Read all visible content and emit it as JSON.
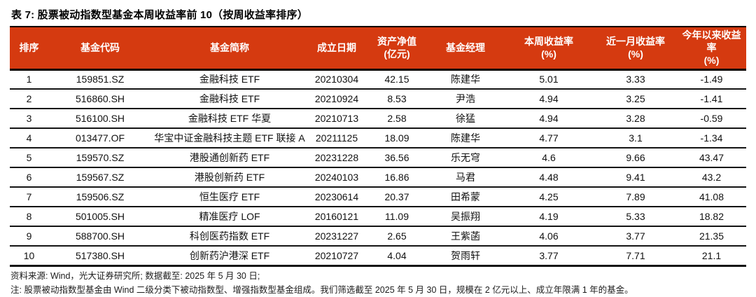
{
  "title": "表 7: 股票被动指数型基金本周收益率前 10（按周收益率排序）",
  "colors": {
    "header_bg": "#d53a10",
    "header_text": "#ffffff",
    "rule": "#141414"
  },
  "table": {
    "columns": [
      {
        "line1": "排序",
        "line2": ""
      },
      {
        "line1": "基金代码",
        "line2": ""
      },
      {
        "line1": "基金简称",
        "line2": ""
      },
      {
        "line1": "成立日期",
        "line2": ""
      },
      {
        "line1": "资产净值",
        "line2": "(亿元)"
      },
      {
        "line1": "基金经理",
        "line2": ""
      },
      {
        "line1": "本周收益率",
        "line2": "(%)"
      },
      {
        "line1": "近一月收益率",
        "line2": "(%)"
      },
      {
        "line1": "今年以来收益率",
        "line2": "(%)"
      }
    ],
    "rows": [
      [
        "1",
        "159851.SZ",
        "金融科技 ETF",
        "20210304",
        "42.15",
        "陈建华",
        "5.01",
        "3.33",
        "-1.49"
      ],
      [
        "2",
        "516860.SH",
        "金融科技 ETF",
        "20210924",
        "8.53",
        "尹浩",
        "4.94",
        "3.25",
        "-1.41"
      ],
      [
        "3",
        "516100.SH",
        "金融科技 ETF 华夏",
        "20210713",
        "2.58",
        "徐猛",
        "4.94",
        "3.28",
        "-0.59"
      ],
      [
        "4",
        "013477.OF",
        "华宝中证金融科技主题 ETF 联接 A",
        "20211125",
        "18.09",
        "陈建华",
        "4.77",
        "3.1",
        "-1.34"
      ],
      [
        "5",
        "159570.SZ",
        "港股通创新药 ETF",
        "20231228",
        "36.56",
        "乐无穹",
        "4.6",
        "9.66",
        "43.47"
      ],
      [
        "6",
        "159567.SZ",
        "港股创新药 ETF",
        "20240103",
        "16.86",
        "马君",
        "4.48",
        "9.41",
        "43.2"
      ],
      [
        "7",
        "159506.SZ",
        "恒生医疗 ETF",
        "20230614",
        "20.37",
        "田希蒙",
        "4.25",
        "7.89",
        "41.08"
      ],
      [
        "8",
        "501005.SH",
        "精准医疗 LOF",
        "20160121",
        "11.09",
        "吴振翔",
        "4.19",
        "5.33",
        "18.82"
      ],
      [
        "9",
        "588700.SH",
        "科创医药指数 ETF",
        "20231227",
        "2.65",
        "王紫菡",
        "4.06",
        "3.77",
        "21.35"
      ],
      [
        "10",
        "517380.SH",
        "创新药沪港深 ETF",
        "20210727",
        "4.04",
        "贺雨轩",
        "3.77",
        "7.71",
        "21.1"
      ]
    ]
  },
  "notes": {
    "source_line": "资料来源: Wind，光大证券研究所; 数据截至: 2025 年 5 月 30 日;",
    "note_line": "注: 股票被动指数型基金由 Wind 二级分类下被动指数型、增强指数型基金组成。我们筛选截至 2025 年 5 月 30 日，规模在 2 亿元以上、成立年限满 1 年的基金。"
  }
}
